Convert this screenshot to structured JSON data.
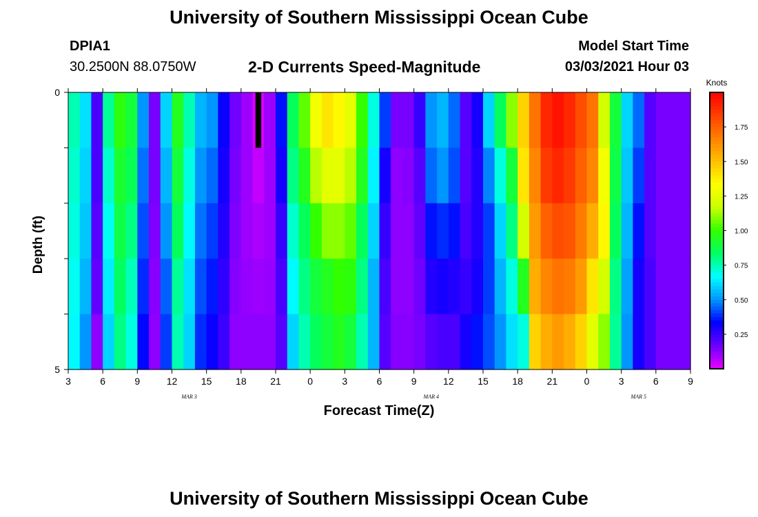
{
  "header": {
    "title": "University of Southern Mississippi Ocean Cube",
    "station": "DPIA1",
    "coordinates": "30.2500N 88.0750W",
    "subtitle": "2-D Currents Speed-Magnitude",
    "start_label": "Model Start Time",
    "start_value": "03/03/2021 Hour 03"
  },
  "footer": {
    "title": "University of Southern Mississippi Ocean Cube"
  },
  "chart_data": {
    "type": "heatmap",
    "title": "2-D Currents Speed-Magnitude",
    "xlabel": "Forecast Time(Z)",
    "ylabel": "Depth (ft)",
    "units": "Knots",
    "ylim": [
      0,
      5
    ],
    "y_tick_labels": [
      "0",
      "5"
    ],
    "x_tick_labels": [
      "3",
      "6",
      "9",
      "12",
      "15",
      "18",
      "21",
      "0",
      "3",
      "6",
      "9",
      "12",
      "15",
      "18",
      "21",
      "0",
      "3",
      "6",
      "9"
    ],
    "date_labels": [
      {
        "text": "MAR 3",
        "at_tick": 3.5
      },
      {
        "text": "MAR 4",
        "at_tick": 10.5
      },
      {
        "text": "MAR 5",
        "at_tick": 16.5
      }
    ],
    "colorbar": {
      "label": "Knots",
      "range": [
        0,
        2.0
      ],
      "ticks": [
        0.25,
        0.5,
        0.75,
        1.0,
        1.25,
        1.5,
        1.75
      ],
      "tick_labels": [
        "0.25",
        "0.50",
        "0.75",
        "1.00",
        "1.25",
        "1.50",
        "1.75"
      ]
    },
    "hours": 54,
    "depth_layers": 5,
    "profiles": [
      {
        "hour": 0,
        "speed": [
          0.75,
          0.72,
          0.7,
          0.68,
          0.66
        ]
      },
      {
        "hour": 1,
        "speed": [
          0.62,
          0.6,
          0.58,
          0.55,
          0.5
        ]
      },
      {
        "hour": 2,
        "speed": [
          0.22,
          0.22,
          0.2,
          0.18,
          0.12
        ]
      },
      {
        "hour": 3,
        "speed": [
          0.78,
          0.72,
          0.68,
          0.64,
          0.6
        ]
      },
      {
        "hour": 4,
        "speed": [
          0.98,
          0.92,
          0.88,
          0.84,
          0.8
        ]
      },
      {
        "hour": 5,
        "speed": [
          0.9,
          0.86,
          0.8,
          0.74,
          0.7
        ]
      },
      {
        "hour": 6,
        "speed": [
          0.5,
          0.46,
          0.42,
          0.38,
          0.34
        ]
      },
      {
        "hour": 7,
        "speed": [
          0.15,
          0.15,
          0.14,
          0.13,
          0.12
        ]
      },
      {
        "hour": 8,
        "speed": [
          0.6,
          0.55,
          0.5,
          0.44,
          0.4
        ]
      },
      {
        "hour": 9,
        "speed": [
          0.95,
          0.9,
          0.85,
          0.78,
          0.75
        ]
      },
      {
        "hour": 10,
        "speed": [
          0.75,
          0.7,
          0.66,
          0.62,
          0.6
        ]
      },
      {
        "hour": 11,
        "speed": [
          0.55,
          0.5,
          0.46,
          0.42,
          0.38
        ]
      },
      {
        "hour": 12,
        "speed": [
          0.5,
          0.45,
          0.4,
          0.36,
          0.32
        ]
      },
      {
        "hour": 13,
        "speed": [
          0.32,
          0.3,
          0.28,
          0.26,
          0.24
        ]
      },
      {
        "hour": 14,
        "speed": [
          0.16,
          0.15,
          0.14,
          0.13,
          0.12
        ]
      },
      {
        "hour": 15,
        "speed": [
          0.1,
          0.1,
          0.1,
          0.11,
          0.12
        ]
      },
      {
        "hour": 16,
        "speed": [
          0.02,
          0.05,
          0.08,
          0.1,
          0.12
        ]
      },
      {
        "hour": 17,
        "speed": [
          0.1,
          0.1,
          0.1,
          0.11,
          0.12
        ]
      },
      {
        "hour": 18,
        "speed": [
          0.35,
          0.3,
          0.25,
          0.22,
          0.2
        ]
      },
      {
        "hour": 19,
        "speed": [
          0.85,
          0.8,
          0.72,
          0.66,
          0.6
        ]
      },
      {
        "hour": 20,
        "speed": [
          1.05,
          0.95,
          0.85,
          0.8,
          0.75
        ]
      },
      {
        "hour": 21,
        "speed": [
          1.3,
          1.15,
          1.0,
          0.9,
          0.85
        ]
      },
      {
        "hour": 22,
        "speed": [
          1.4,
          1.25,
          1.1,
          0.95,
          0.9
        ]
      },
      {
        "hour": 23,
        "speed": [
          1.35,
          1.25,
          1.1,
          1.0,
          0.95
        ]
      },
      {
        "hour": 24,
        "speed": [
          1.25,
          1.15,
          1.05,
          0.98,
          0.9
        ]
      },
      {
        "hour": 25,
        "speed": [
          1.0,
          0.95,
          0.85,
          0.8,
          0.75
        ]
      },
      {
        "hour": 26,
        "speed": [
          0.7,
          0.65,
          0.6,
          0.55,
          0.55
        ]
      },
      {
        "hour": 27,
        "speed": [
          0.4,
          0.3,
          0.25,
          0.22,
          0.2
        ]
      },
      {
        "hour": 28,
        "speed": [
          0.15,
          0.12,
          0.12,
          0.12,
          0.13
        ]
      },
      {
        "hour": 29,
        "speed": [
          0.15,
          0.13,
          0.12,
          0.12,
          0.13
        ]
      },
      {
        "hour": 30,
        "speed": [
          0.25,
          0.2,
          0.18,
          0.16,
          0.15
        ]
      },
      {
        "hour": 31,
        "speed": [
          0.5,
          0.45,
          0.35,
          0.28,
          0.2
        ]
      },
      {
        "hour": 32,
        "speed": [
          0.55,
          0.5,
          0.38,
          0.3,
          0.22
        ]
      },
      {
        "hour": 33,
        "speed": [
          0.45,
          0.42,
          0.35,
          0.28,
          0.22
        ]
      },
      {
        "hour": 34,
        "speed": [
          0.2,
          0.2,
          0.22,
          0.25,
          0.3
        ]
      },
      {
        "hour": 35,
        "speed": [
          0.3,
          0.28,
          0.28,
          0.3,
          0.35
        ]
      },
      {
        "hour": 36,
        "speed": [
          0.6,
          0.48,
          0.4,
          0.4,
          0.42
        ]
      },
      {
        "hour": 37,
        "speed": [
          0.85,
          0.7,
          0.6,
          0.55,
          0.5
        ]
      },
      {
        "hour": 38,
        "speed": [
          1.1,
          0.9,
          0.8,
          0.7,
          0.62
        ]
      },
      {
        "hour": 39,
        "speed": [
          1.45,
          1.4,
          1.2,
          0.95,
          0.7
        ]
      },
      {
        "hour": 40,
        "speed": [
          1.7,
          1.65,
          1.6,
          1.55,
          1.45
        ]
      },
      {
        "hour": 41,
        "speed": [
          1.9,
          1.85,
          1.75,
          1.65,
          1.55
        ]
      },
      {
        "hour": 42,
        "speed": [
          1.95,
          1.9,
          1.8,
          1.7,
          1.6
        ]
      },
      {
        "hour": 43,
        "speed": [
          1.9,
          1.85,
          1.78,
          1.68,
          1.55
        ]
      },
      {
        "hour": 44,
        "speed": [
          1.8,
          1.75,
          1.68,
          1.6,
          1.45
        ]
      },
      {
        "hour": 45,
        "speed": [
          1.7,
          1.65,
          1.55,
          1.4,
          1.25
        ]
      },
      {
        "hour": 46,
        "speed": [
          1.2,
          1.3,
          1.35,
          1.2,
          1.1
        ]
      },
      {
        "hour": 47,
        "speed": [
          0.9,
          0.88,
          0.85,
          0.8,
          0.78
        ]
      },
      {
        "hour": 48,
        "speed": [
          0.6,
          0.58,
          0.55,
          0.52,
          0.5
        ]
      },
      {
        "hour": 49,
        "speed": [
          0.45,
          0.4,
          0.35,
          0.3,
          0.3
        ]
      },
      {
        "hour": 50,
        "speed": [
          0.2,
          0.2,
          0.2,
          0.22,
          0.22
        ]
      },
      {
        "hour": 51,
        "speed": [
          0.15,
          0.15,
          0.15,
          0.15,
          0.15
        ]
      },
      {
        "hour": 52,
        "speed": [
          0.15,
          0.15,
          0.15,
          0.15,
          0.15
        ]
      },
      {
        "hour": 53,
        "speed": [
          0.15,
          0.15,
          0.15,
          0.15,
          0.15
        ]
      }
    ],
    "missing_cells": [
      {
        "hour": 16,
        "layer": 0
      }
    ]
  },
  "colors": {
    "missing": "#000000",
    "colormap": [
      "#e800ff",
      "#6b00ff",
      "#0000ff",
      "#0096ff",
      "#00ffff",
      "#00ff64",
      "#32ff00",
      "#c8ff00",
      "#ffff00",
      "#ffc000",
      "#ff8000",
      "#ff4000",
      "#ff0000"
    ]
  }
}
